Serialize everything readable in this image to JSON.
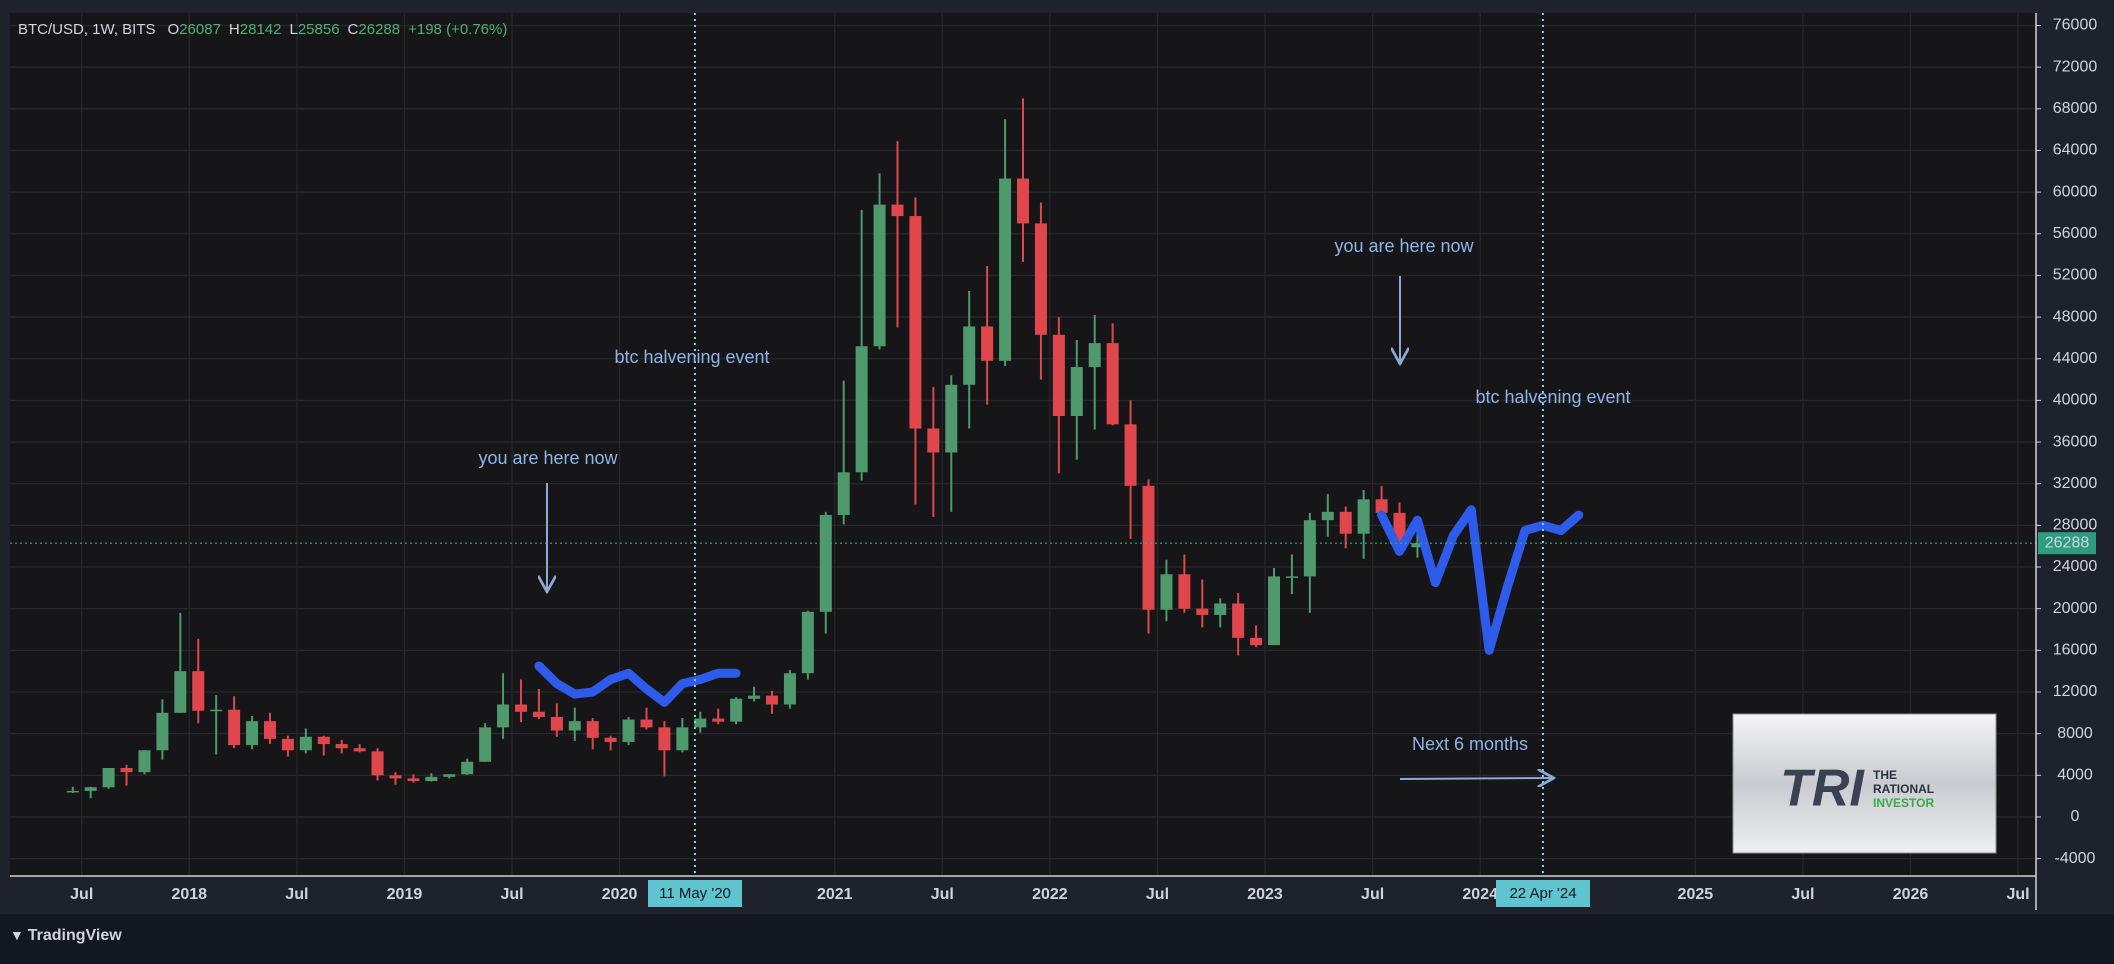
{
  "chart_data": {
    "type": "candlestick",
    "legend": {
      "symbol": "BTC/USD, 1W, BITS",
      "open_key": "O",
      "open": "26087",
      "high_key": "H",
      "high": "28142",
      "low_key": "L",
      "low": "25856",
      "close_key": "C",
      "close": "26288",
      "change": "+198 (+0.76%)"
    },
    "x": [
      "2017-06",
      "2017-07",
      "2017-08",
      "2017-09",
      "2017-10",
      "2017-11",
      "2017-12",
      "2018-01",
      "2018-02",
      "2018-03",
      "2018-04",
      "2018-05",
      "2018-06",
      "2018-07",
      "2018-08",
      "2018-09",
      "2018-10",
      "2018-11",
      "2018-12",
      "2019-01",
      "2019-02",
      "2019-03",
      "2019-04",
      "2019-05",
      "2019-06",
      "2019-07",
      "2019-08",
      "2019-09",
      "2019-10",
      "2019-11",
      "2019-12",
      "2020-01",
      "2020-02",
      "2020-03",
      "2020-04",
      "2020-05",
      "2020-06",
      "2020-07",
      "2020-08",
      "2020-09",
      "2020-10",
      "2020-11",
      "2020-12",
      "2021-01",
      "2021-02",
      "2021-03",
      "2021-04",
      "2021-05",
      "2021-06",
      "2021-07",
      "2021-08",
      "2021-09",
      "2021-10",
      "2021-11",
      "2021-12",
      "2022-01",
      "2022-02",
      "2022-03",
      "2022-04",
      "2022-05",
      "2022-06",
      "2022-07",
      "2022-08",
      "2022-09",
      "2022-10",
      "2022-11",
      "2022-12",
      "2023-01",
      "2023-02",
      "2023-03",
      "2023-04",
      "2023-05",
      "2023-06",
      "2023-07",
      "2023-08",
      "2023-09"
    ],
    "open": [
      2400,
      2500,
      2850,
      4700,
      4300,
      6400,
      10000,
      14000,
      10200,
      10300,
      6900,
      9200,
      7500,
      6400,
      7700,
      7000,
      6600,
      6300,
      4000,
      3700,
      3450,
      3850,
      4100,
      5300,
      8600,
      10800,
      10100,
      9600,
      8300,
      9200,
      7600,
      7200,
      9350,
      8600,
      6400,
      8600,
      9450,
      9150,
      11350,
      11650,
      10800,
      13800,
      19700,
      29000,
      33100,
      45200,
      58800,
      57700,
      37300,
      35000,
      41500,
      47100,
      43800,
      61300,
      57000,
      46300,
      38500,
      43200,
      45500,
      37700,
      31800,
      19900,
      23300,
      20000,
      19400,
      20500,
      17200,
      16500,
      23100,
      23100,
      28500,
      29300,
      27200,
      30500,
      29200,
      25900
    ],
    "high": [
      2900,
      2900,
      4700,
      5000,
      6400,
      11300,
      19600,
      17100,
      11700,
      11600,
      9700,
      10000,
      7800,
      8500,
      7800,
      7400,
      7000,
      6600,
      4300,
      4100,
      4200,
      4100,
      5600,
      9000,
      13800,
      13200,
      12300,
      10900,
      10500,
      9500,
      7800,
      9600,
      10500,
      9200,
      9500,
      10100,
      10400,
      11500,
      12500,
      12100,
      14100,
      19800,
      29300,
      41900,
      58300,
      61800,
      64900,
      59500,
      41300,
      42400,
      50500,
      52900,
      67000,
      69000,
      59000,
      48000,
      45800,
      48200,
      47400,
      40000,
      32400,
      24700,
      25200,
      22800,
      21000,
      21500,
      18400,
      23900,
      25200,
      29200,
      31000,
      29800,
      31400,
      31800,
      30200,
      28100
    ],
    "low": [
      2300,
      1800,
      2700,
      3000,
      4100,
      5500,
      10000,
      9000,
      6000,
      6600,
      6500,
      7000,
      5800,
      6100,
      5900,
      6100,
      6200,
      3500,
      3100,
      3300,
      3400,
      3700,
      4050,
      5300,
      7500,
      9100,
      9400,
      7700,
      7300,
      6500,
      6400,
      6900,
      8400,
      3900,
      6200,
      8100,
      8900,
      8900,
      11100,
      9900,
      10400,
      13200,
      17600,
      28100,
      32300,
      44900,
      47000,
      30000,
      28800,
      29300,
      37300,
      39600,
      43300,
      53300,
      42000,
      33000,
      34300,
      37200,
      37600,
      26700,
      17600,
      18800,
      19600,
      18200,
      18200,
      15500,
      16300,
      16500,
      21400,
      19600,
      26900,
      25800,
      24800,
      28900,
      25100,
      24900
    ],
    "close": [
      2500,
      2850,
      4700,
      4300,
      6400,
      10000,
      14000,
      10200,
      10300,
      6900,
      9200,
      7500,
      6400,
      7700,
      7000,
      6600,
      6300,
      4000,
      3700,
      3450,
      3850,
      4100,
      5300,
      8600,
      10800,
      10100,
      9600,
      8300,
      9200,
      7600,
      7200,
      9350,
      8600,
      6400,
      8600,
      9450,
      9150,
      11350,
      11650,
      10800,
      13800,
      19700,
      29000,
      33100,
      45200,
      58800,
      57700,
      37300,
      35000,
      41500,
      47100,
      43800,
      61300,
      57000,
      46300,
      38500,
      43200,
      45500,
      37700,
      31800,
      19900,
      23300,
      20000,
      19400,
      20500,
      17200,
      16500,
      23100,
      23100,
      28500,
      29300,
      27200,
      30500,
      29200,
      25900,
      26288
    ],
    "up_color": "#4e9a6c",
    "down_color": "#e0474c",
    "overlays": [
      {
        "color": "#2f5bea",
        "x": [
          "2019-08",
          "2019-09",
          "2019-10",
          "2019-11",
          "2019-12",
          "2020-01",
          "2020-02",
          "2020-03",
          "2020-04",
          "2020-05",
          "2020-06",
          "2020-07"
        ],
        "values": [
          14500,
          12800,
          11800,
          12000,
          13200,
          13800,
          12300,
          11000,
          12800,
          13200,
          13800,
          13800
        ]
      },
      {
        "color": "#2f5bea",
        "x": [
          "2023-07",
          "2023-08",
          "2023-09",
          "2023-10",
          "2023-11",
          "2023-12",
          "2024-01",
          "2024-02",
          "2024-03",
          "2024-04",
          "2024-05",
          "2024-06"
        ],
        "values": [
          29000,
          25500,
          28500,
          22500,
          27000,
          29500,
          16000,
          22000,
          27500,
          28000,
          27500,
          29000
        ]
      }
    ],
    "xlim": [
      "2017-03",
      "2026-08"
    ],
    "xticks": [
      {
        "value": "2017-07",
        "label": "Jul"
      },
      {
        "value": "2018-01",
        "label": "2018"
      },
      {
        "value": "2018-07",
        "label": "Jul"
      },
      {
        "value": "2019-01",
        "label": "2019"
      },
      {
        "value": "2019-07",
        "label": "Jul"
      },
      {
        "value": "2020-01",
        "label": "2020"
      },
      {
        "value": "2021-01",
        "label": "2021"
      },
      {
        "value": "2021-07",
        "label": "Jul"
      },
      {
        "value": "2022-01",
        "label": "2022"
      },
      {
        "value": "2022-07",
        "label": "Jul"
      },
      {
        "value": "2023-01",
        "label": "2023"
      },
      {
        "value": "2023-07",
        "label": "Jul"
      },
      {
        "value": "2024-01",
        "label": "2024"
      },
      {
        "value": "2025-01",
        "label": "2025"
      },
      {
        "value": "2025-07",
        "label": "Jul"
      },
      {
        "value": "2026-01",
        "label": "2026"
      },
      {
        "value": "2026-07",
        "label": "Jul"
      }
    ],
    "ylim": [
      -5670,
      77200
    ],
    "yticks": [
      -4000,
      0,
      4000,
      8000,
      12000,
      16000,
      20000,
      24000,
      28000,
      32000,
      36000,
      40000,
      44000,
      48000,
      52000,
      56000,
      60000,
      64000,
      68000,
      72000,
      76000
    ],
    "last_price": 26288,
    "grid": true,
    "halvings": [
      "11 May '20",
      "22 Apr '24"
    ],
    "annotations": [
      "btc halvening event",
      "you are here now",
      "you are here now",
      "btc halvening event",
      "Next 6 months"
    ],
    "logo": {
      "mark": "TRI",
      "lines": [
        "THE",
        "RATIONAL",
        "INVESTOR"
      ]
    },
    "brand": "TradingView"
  }
}
